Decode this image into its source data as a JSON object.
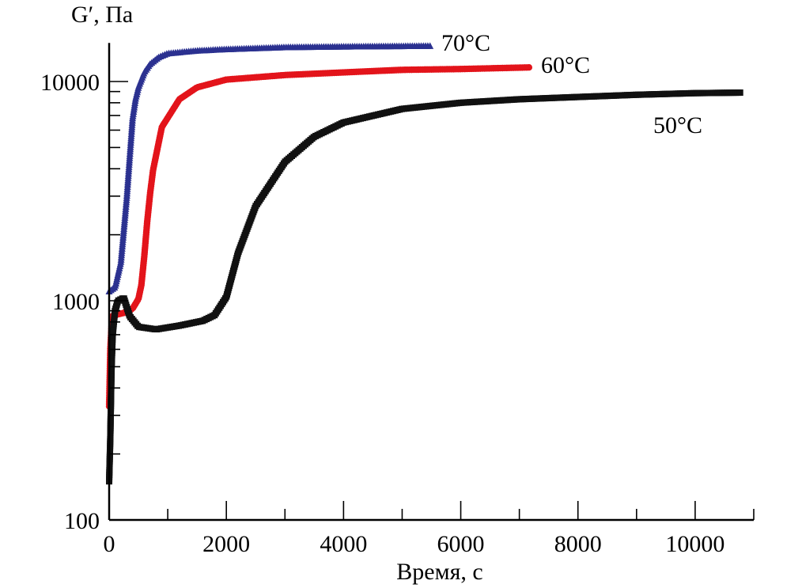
{
  "chart_data": {
    "type": "scatter",
    "title": "",
    "xlabel": "Время, с",
    "ylabel": "G′, Па",
    "xlim": [
      0,
      11000
    ],
    "ylim": [
      100,
      15000
    ],
    "yscale": "log",
    "xticks": [
      "0",
      "2000",
      "4000",
      "6000",
      "8000",
      "10000"
    ],
    "yticks": [
      "100",
      "1000",
      "10000"
    ],
    "grid": false,
    "legend": "inline labels at curve ends",
    "series": [
      {
        "name": "70°C",
        "color": "#2b3190",
        "marker": "triangle",
        "x": [
          0,
          100,
          200,
          250,
          300,
          350,
          400,
          450,
          500,
          600,
          700,
          850,
          1000,
          1500,
          2000,
          3000,
          4000,
          5500
        ],
        "y": [
          1100,
          1150,
          1500,
          2100,
          2950,
          4500,
          6800,
          8300,
          9400,
          11000,
          12000,
          12900,
          13400,
          13800,
          14000,
          14300,
          14400,
          14500
        ]
      },
      {
        "name": "60°C",
        "color": "#e3141b",
        "marker": "circle",
        "x": [
          0,
          20,
          50,
          100,
          250,
          400,
          500,
          550,
          600,
          650,
          700,
          750,
          900,
          1200,
          1500,
          2000,
          3000,
          4000,
          5000,
          6000,
          7200
        ],
        "y": [
          330,
          600,
          850,
          860,
          880,
          920,
          1020,
          1180,
          1600,
          2300,
          3100,
          3950,
          6200,
          8300,
          9400,
          10200,
          10700,
          11000,
          11300,
          11400,
          11600
        ]
      },
      {
        "name": "50°C",
        "color": "#111111",
        "marker": "square",
        "x": [
          0,
          20,
          40,
          60,
          100,
          150,
          250,
          350,
          500,
          800,
          1200,
          1600,
          1800,
          2000,
          2200,
          2500,
          3000,
          3500,
          4000,
          5000,
          6000,
          7000,
          8000,
          9000,
          10000,
          10800
        ],
        "y": [
          150,
          240,
          480,
          700,
          900,
          1000,
          1030,
          850,
          760,
          740,
          770,
          810,
          860,
          1040,
          1650,
          2700,
          4300,
          5600,
          6500,
          7500,
          8000,
          8300,
          8500,
          8700,
          8850,
          8900
        ]
      }
    ]
  }
}
